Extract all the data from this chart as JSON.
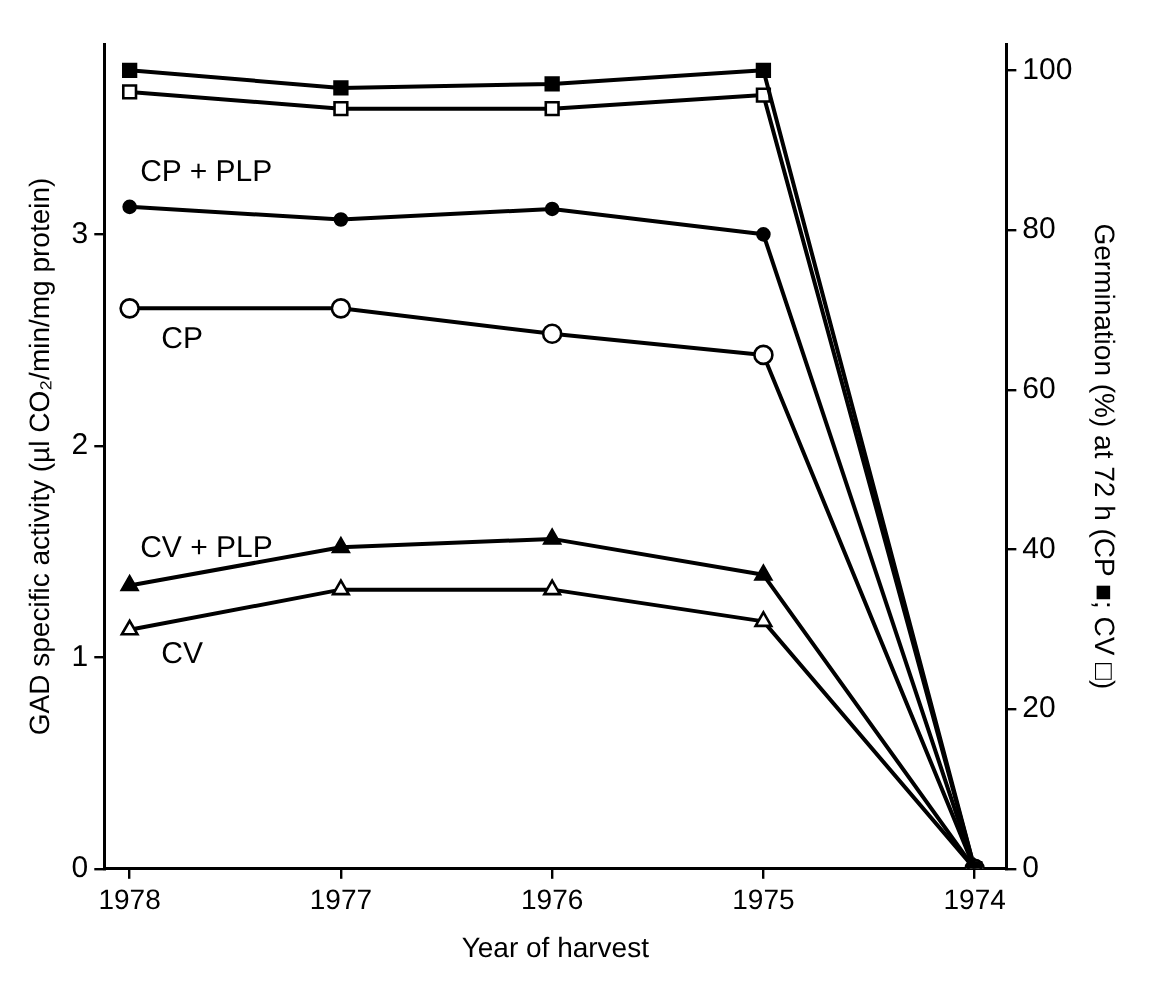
{
  "chart_data": {
    "type": "line",
    "xlabel": "Year of harvest",
    "ylabel": "GAD specific activity (µl CO₂/min/mg protein)",
    "y2label": "Germination (%) at 72 h (CP ■; CV □)",
    "categories": [
      "1978",
      "1977",
      "1976",
      "1975",
      "1974"
    ],
    "ylim": [
      0,
      3.9
    ],
    "yticks": [
      0,
      1,
      2,
      3
    ],
    "y2lim": [
      0,
      103.3
    ],
    "y2ticks": [
      0,
      20,
      40,
      60,
      80,
      100
    ],
    "grid": false,
    "legend": false,
    "line_style": "solid",
    "series": [
      {
        "color": "#000000",
        "marker": "square",
        "axis": "y2",
        "values": [
          100,
          97.8,
          98.3,
          100,
          0
        ]
      },
      {
        "color": "#000000",
        "marker": "square",
        "axis": "y2",
        "values": [
          97.3,
          95.2,
          95.2,
          96.9,
          0
        ]
      },
      {
        "name": "CP + PLP",
        "color": "#000000",
        "marker": "circle",
        "values": [
          3.13,
          3.07,
          3.12,
          3.0,
          0
        ]
      },
      {
        "name": "CP",
        "color": "#000000",
        "marker": "circle",
        "values": [
          2.65,
          2.65,
          2.53,
          2.43,
          0
        ]
      },
      {
        "name": "CV + PLP",
        "color": "#000000",
        "marker": "triangle",
        "values": [
          1.34,
          1.52,
          1.56,
          1.39,
          0
        ]
      },
      {
        "name": "CV",
        "color": "#000000",
        "marker": "triangle",
        "values": [
          1.13,
          1.32,
          1.32,
          1.17,
          0
        ]
      }
    ]
  }
}
